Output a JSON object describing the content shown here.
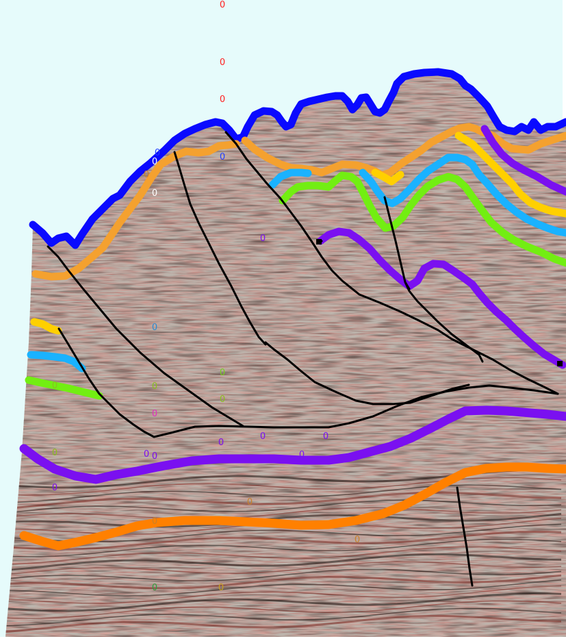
{
  "figure": {
    "type": "interpreted seismic section",
    "sky_color": "#e6fbfb",
    "section_colors": {
      "dark": "#3a2420",
      "mid": "#8a3a30",
      "light": "#d9d6d0",
      "base": "#b7b1aa"
    }
  },
  "horizons": [
    {
      "name": "seafloor",
      "color": "#0a0aff"
    },
    {
      "name": "horizon-orange-upper",
      "color": "#f4a12f"
    },
    {
      "name": "horizon-yellow",
      "color": "#ffd000"
    },
    {
      "name": "horizon-cyan",
      "color": "#1ab2ff"
    },
    {
      "name": "horizon-green",
      "color": "#72ee12"
    },
    {
      "name": "horizon-purple-upper",
      "color": "#7a10f0"
    },
    {
      "name": "horizon-purple-lower",
      "color": "#7a10f0"
    },
    {
      "name": "horizon-orange-lower",
      "color": "#ff8000"
    }
  ],
  "faults": {
    "color": "#000000",
    "count": 9
  },
  "markers": [
    {
      "text": "0",
      "color": "#ff2020"
    },
    {
      "text": "0",
      "color": "#ff2020"
    },
    {
      "text": "0",
      "color": "#ff2020"
    },
    {
      "text": "0",
      "color": "#2040ff"
    },
    {
      "text": "0",
      "color": "#2040ff"
    },
    {
      "text": "0",
      "color": "#c8802a"
    },
    {
      "text": "0",
      "color": "#ffffff"
    },
    {
      "text": "0",
      "color": "#ffffff"
    },
    {
      "text": "0",
      "color": "#7a10f0"
    },
    {
      "text": "0",
      "color": "#2a8ad0"
    },
    {
      "text": "0",
      "color": "#7ad020"
    },
    {
      "text": "0",
      "color": "#8ac020"
    },
    {
      "text": "0",
      "color": "#8ac020"
    },
    {
      "text": "0",
      "color": "#e030c0"
    },
    {
      "text": "0",
      "color": "#7a10f0"
    },
    {
      "text": "0",
      "color": "#7a10f0"
    },
    {
      "text": "0",
      "color": "#7a10f0"
    },
    {
      "text": "0",
      "color": "#7a10f0"
    },
    {
      "text": "0",
      "color": "#7a10f0"
    },
    {
      "text": "0",
      "color": "#7a10f0"
    },
    {
      "text": "0",
      "color": "#8ac020"
    },
    {
      "text": "0",
      "color": "#7a10f0"
    },
    {
      "text": "0",
      "color": "#c8802a"
    },
    {
      "text": "0",
      "color": "#8ac020"
    },
    {
      "text": "0",
      "color": "#c8802a"
    },
    {
      "text": "0",
      "color": "#30a040"
    },
    {
      "text": "0",
      "color": "#c8a020"
    },
    {
      "text": "0",
      "color": "#c8802a"
    }
  ]
}
